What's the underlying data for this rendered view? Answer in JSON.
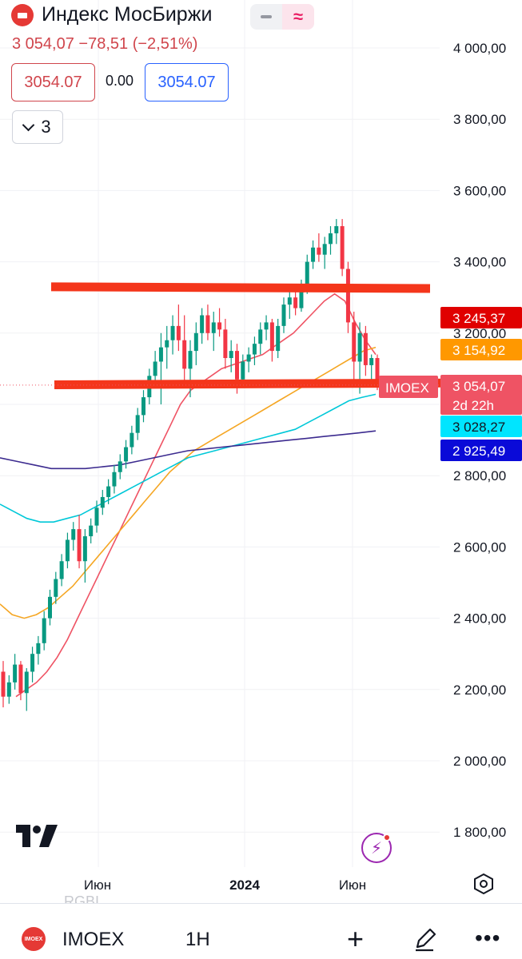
{
  "header": {
    "title": "Индекс МосБиржи",
    "price_line": "3 054,07 −78,51 (−2,51%)",
    "sell_price": "3054.07",
    "spread": "0.00",
    "buy_price": "3054.07",
    "indicators_count": "3"
  },
  "chart_data": {
    "type": "candlestick",
    "symbol": "IMOEX",
    "y_ticks": [
      "4 000,00",
      "3 800,00",
      "3 600,00",
      "3 400,00",
      "3 200,00",
      "3 000,00",
      "2 800,00",
      "2 600,00",
      "2 400,00",
      "2 200,00",
      "2 000,00",
      "1 800,00"
    ],
    "y_tick_values": [
      4000,
      3800,
      3600,
      3400,
      3200,
      3000,
      2800,
      2600,
      2400,
      2200,
      2000,
      1800
    ],
    "ylim": [
      1700,
      4100
    ],
    "x_ticks": [
      "Июн",
      "2024",
      "Июн"
    ],
    "price_badges": [
      {
        "label": "3 245,37",
        "value": 3245.37,
        "color": "#e00000"
      },
      {
        "label": "3 154,92",
        "value": 3154.92,
        "color": "#ff9800"
      },
      {
        "label": "3 054,07",
        "value": 3054.07,
        "color": "#ef5364"
      },
      {
        "label": "3 028,27",
        "value": 3028.27,
        "color": "#00e5ff"
      },
      {
        "label": "2 925,49",
        "value": 2925.49,
        "color": "#0a0ad8"
      }
    ],
    "last_price_label": "IMOEX",
    "countdown": "2d 22h",
    "candles": [
      [
        2250,
        2280,
        2150,
        2180
      ],
      [
        2180,
        2240,
        2160,
        2220
      ],
      [
        2220,
        2300,
        2200,
        2270
      ],
      [
        2270,
        2280,
        2170,
        2190
      ],
      [
        2190,
        2260,
        2140,
        2250
      ],
      [
        2250,
        2320,
        2220,
        2300
      ],
      [
        2300,
        2350,
        2270,
        2330
      ],
      [
        2330,
        2420,
        2310,
        2400
      ],
      [
        2400,
        2480,
        2380,
        2460
      ],
      [
        2460,
        2530,
        2440,
        2510
      ],
      [
        2510,
        2580,
        2490,
        2560
      ],
      [
        2560,
        2640,
        2540,
        2620
      ],
      [
        2620,
        2670,
        2590,
        2650
      ],
      [
        2650,
        2690,
        2540,
        2560
      ],
      [
        2560,
        2650,
        2500,
        2630
      ],
      [
        2630,
        2680,
        2610,
        2660
      ],
      [
        2660,
        2730,
        2640,
        2710
      ],
      [
        2710,
        2760,
        2690,
        2740
      ],
      [
        2740,
        2790,
        2720,
        2770
      ],
      [
        2770,
        2830,
        2750,
        2810
      ],
      [
        2810,
        2860,
        2790,
        2840
      ],
      [
        2840,
        2900,
        2820,
        2880
      ],
      [
        2880,
        2940,
        2860,
        2920
      ],
      [
        2920,
        2990,
        2900,
        2970
      ],
      [
        2970,
        3040,
        2950,
        3020
      ],
      [
        3020,
        3100,
        3000,
        3080
      ],
      [
        3080,
        3150,
        3060,
        3120
      ],
      [
        3120,
        3200,
        3000,
        3160
      ],
      [
        3160,
        3220,
        3100,
        3180
      ],
      [
        3180,
        3250,
        3140,
        3220
      ],
      [
        3220,
        3280,
        3150,
        3180
      ],
      [
        3180,
        3250,
        3050,
        3100
      ],
      [
        3100,
        3180,
        3020,
        3150
      ],
      [
        3150,
        3230,
        3110,
        3200
      ],
      [
        3200,
        3270,
        3170,
        3250
      ],
      [
        3250,
        3280,
        3180,
        3200
      ],
      [
        3200,
        3260,
        3150,
        3230
      ],
      [
        3230,
        3270,
        3190,
        3210
      ],
      [
        3210,
        3240,
        3100,
        3130
      ],
      [
        3130,
        3180,
        3090,
        3150
      ],
      [
        3150,
        3170,
        3030,
        3070
      ],
      [
        3070,
        3140,
        3050,
        3120
      ],
      [
        3120,
        3160,
        3090,
        3140
      ],
      [
        3140,
        3190,
        3110,
        3170
      ],
      [
        3170,
        3230,
        3140,
        3210
      ],
      [
        3210,
        3250,
        3180,
        3230
      ],
      [
        3230,
        3240,
        3120,
        3150
      ],
      [
        3150,
        3240,
        3130,
        3220
      ],
      [
        3220,
        3300,
        3200,
        3280
      ],
      [
        3280,
        3320,
        3240,
        3300
      ],
      [
        3300,
        3330,
        3250,
        3270
      ],
      [
        3270,
        3350,
        3260,
        3330
      ],
      [
        3330,
        3420,
        3310,
        3400
      ],
      [
        3400,
        3460,
        3380,
        3440
      ],
      [
        3440,
        3480,
        3400,
        3420
      ],
      [
        3420,
        3470,
        3380,
        3450
      ],
      [
        3450,
        3500,
        3420,
        3480
      ],
      [
        3480,
        3520,
        3450,
        3500
      ],
      [
        3500,
        3520,
        3360,
        3380
      ],
      [
        3380,
        3400,
        3200,
        3230
      ],
      [
        3230,
        3260,
        3050,
        3120
      ],
      [
        3120,
        3230,
        3030,
        3200
      ],
      [
        3200,
        3220,
        3080,
        3110
      ],
      [
        3110,
        3140,
        3050,
        3130
      ],
      [
        3130,
        3140,
        3040,
        3054.07
      ]
    ],
    "moving_averages": [
      {
        "color": "#ef5364",
        "values": [
          2180,
          2200,
          2220,
          2250,
          2290,
          2340,
          2400,
          2460,
          2520,
          2580,
          2640,
          2700,
          2760,
          2820,
          2880,
          2940,
          3000,
          3040,
          3060,
          3080,
          3100,
          3110,
          3120,
          3130,
          3140,
          3160,
          3180,
          3200,
          3230,
          3260,
          3290,
          3310,
          3290,
          3230,
          3180,
          3140
        ]
      },
      {
        "color": "#f5a623",
        "values": [
          2440,
          2410,
          2400,
          2410,
          2430,
          2460,
          2490,
          2530,
          2570,
          2610,
          2650,
          2690,
          2730,
          2770,
          2810,
          2840,
          2870,
          2890,
          2910,
          2930,
          2950,
          2970,
          2990,
          3010,
          3030,
          3050,
          3070,
          3090,
          3110,
          3130,
          3150,
          3160
        ]
      },
      {
        "color": "#00c8d8",
        "values": [
          2720,
          2700,
          2680,
          2670,
          2670,
          2680,
          2690,
          2710,
          2730,
          2750,
          2770,
          2790,
          2810,
          2830,
          2850,
          2860,
          2870,
          2880,
          2890,
          2900,
          2910,
          2920,
          2930,
          2950,
          2970,
          2990,
          3010,
          3020,
          3028.27
        ]
      },
      {
        "color": "#3c2b8f",
        "values": [
          2850,
          2840,
          2830,
          2820,
          2820,
          2820,
          2825,
          2830,
          2840,
          2850,
          2860,
          2870,
          2875,
          2880,
          2885,
          2890,
          2895,
          2900,
          2905,
          2910,
          2915,
          2920,
          2925.49
        ]
      }
    ],
    "horizontal_lines": [
      {
        "value": 3330,
        "end_value": 3325
      },
      {
        "value": 3055,
        "end_value": 3060
      }
    ]
  },
  "bottom_bar": {
    "ghost_text": "RGBI",
    "flag_text": "IMOEX",
    "symbol": "IMOEX",
    "interval": "1H"
  },
  "colors": {
    "up": "#089981",
    "down": "#f23645",
    "accent": "#2962ff"
  }
}
